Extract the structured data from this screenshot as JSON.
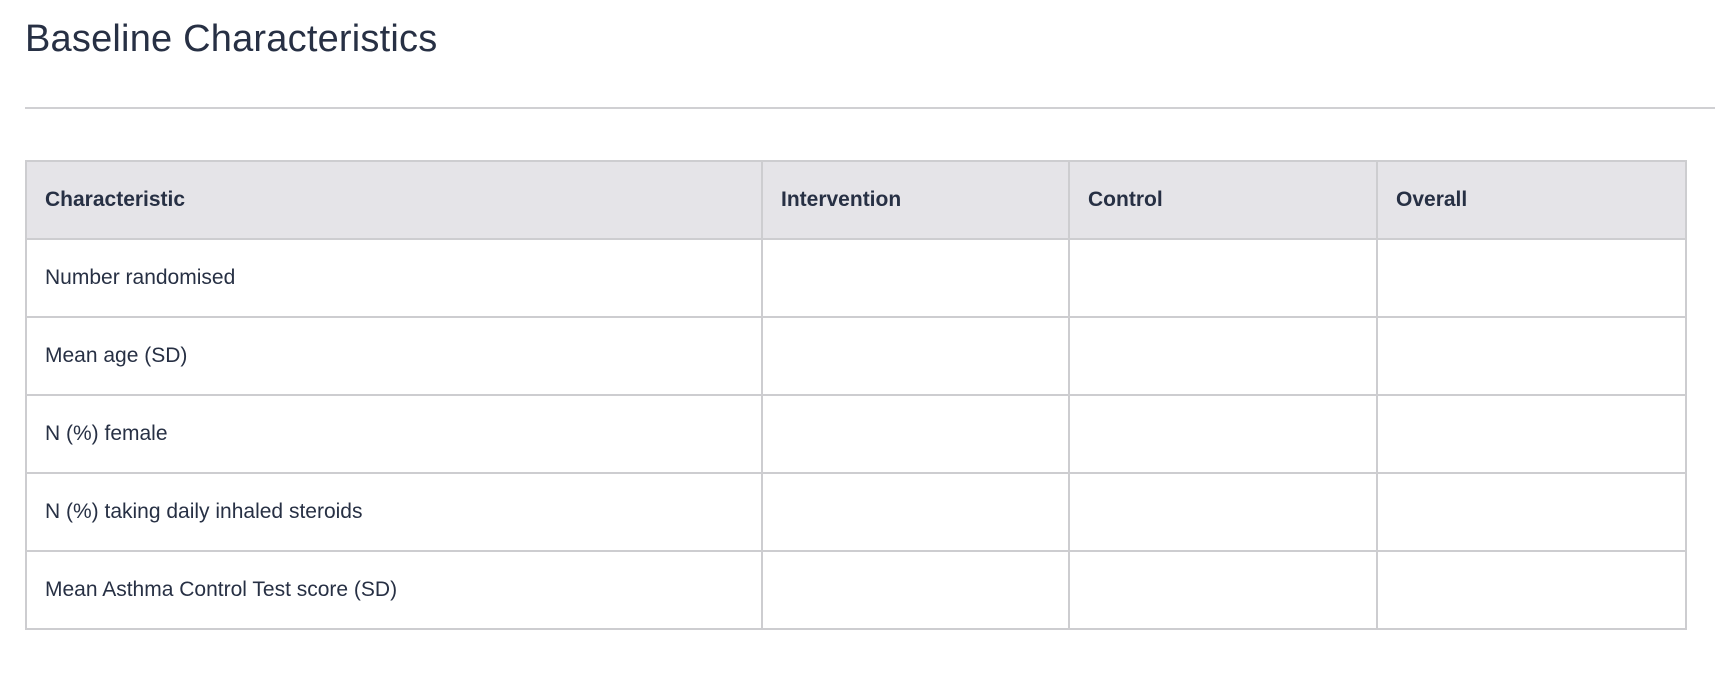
{
  "title": "Baseline Characteristics",
  "table": {
    "headers": [
      "Characteristic",
      "Intervention",
      "Control",
      "Overall"
    ],
    "rows": [
      [
        "Number randomised",
        "",
        "",
        ""
      ],
      [
        "Mean age (SD)",
        "",
        "",
        ""
      ],
      [
        "N (%) female",
        "",
        "",
        ""
      ],
      [
        "N (%) taking daily inhaled steroids",
        "",
        "",
        ""
      ],
      [
        "Mean Asthma Control Test score (SD)",
        "",
        "",
        ""
      ]
    ]
  },
  "colors": {
    "text": "#273044",
    "header_bg": "#e5e4e8",
    "border": "#cdcdd0"
  }
}
